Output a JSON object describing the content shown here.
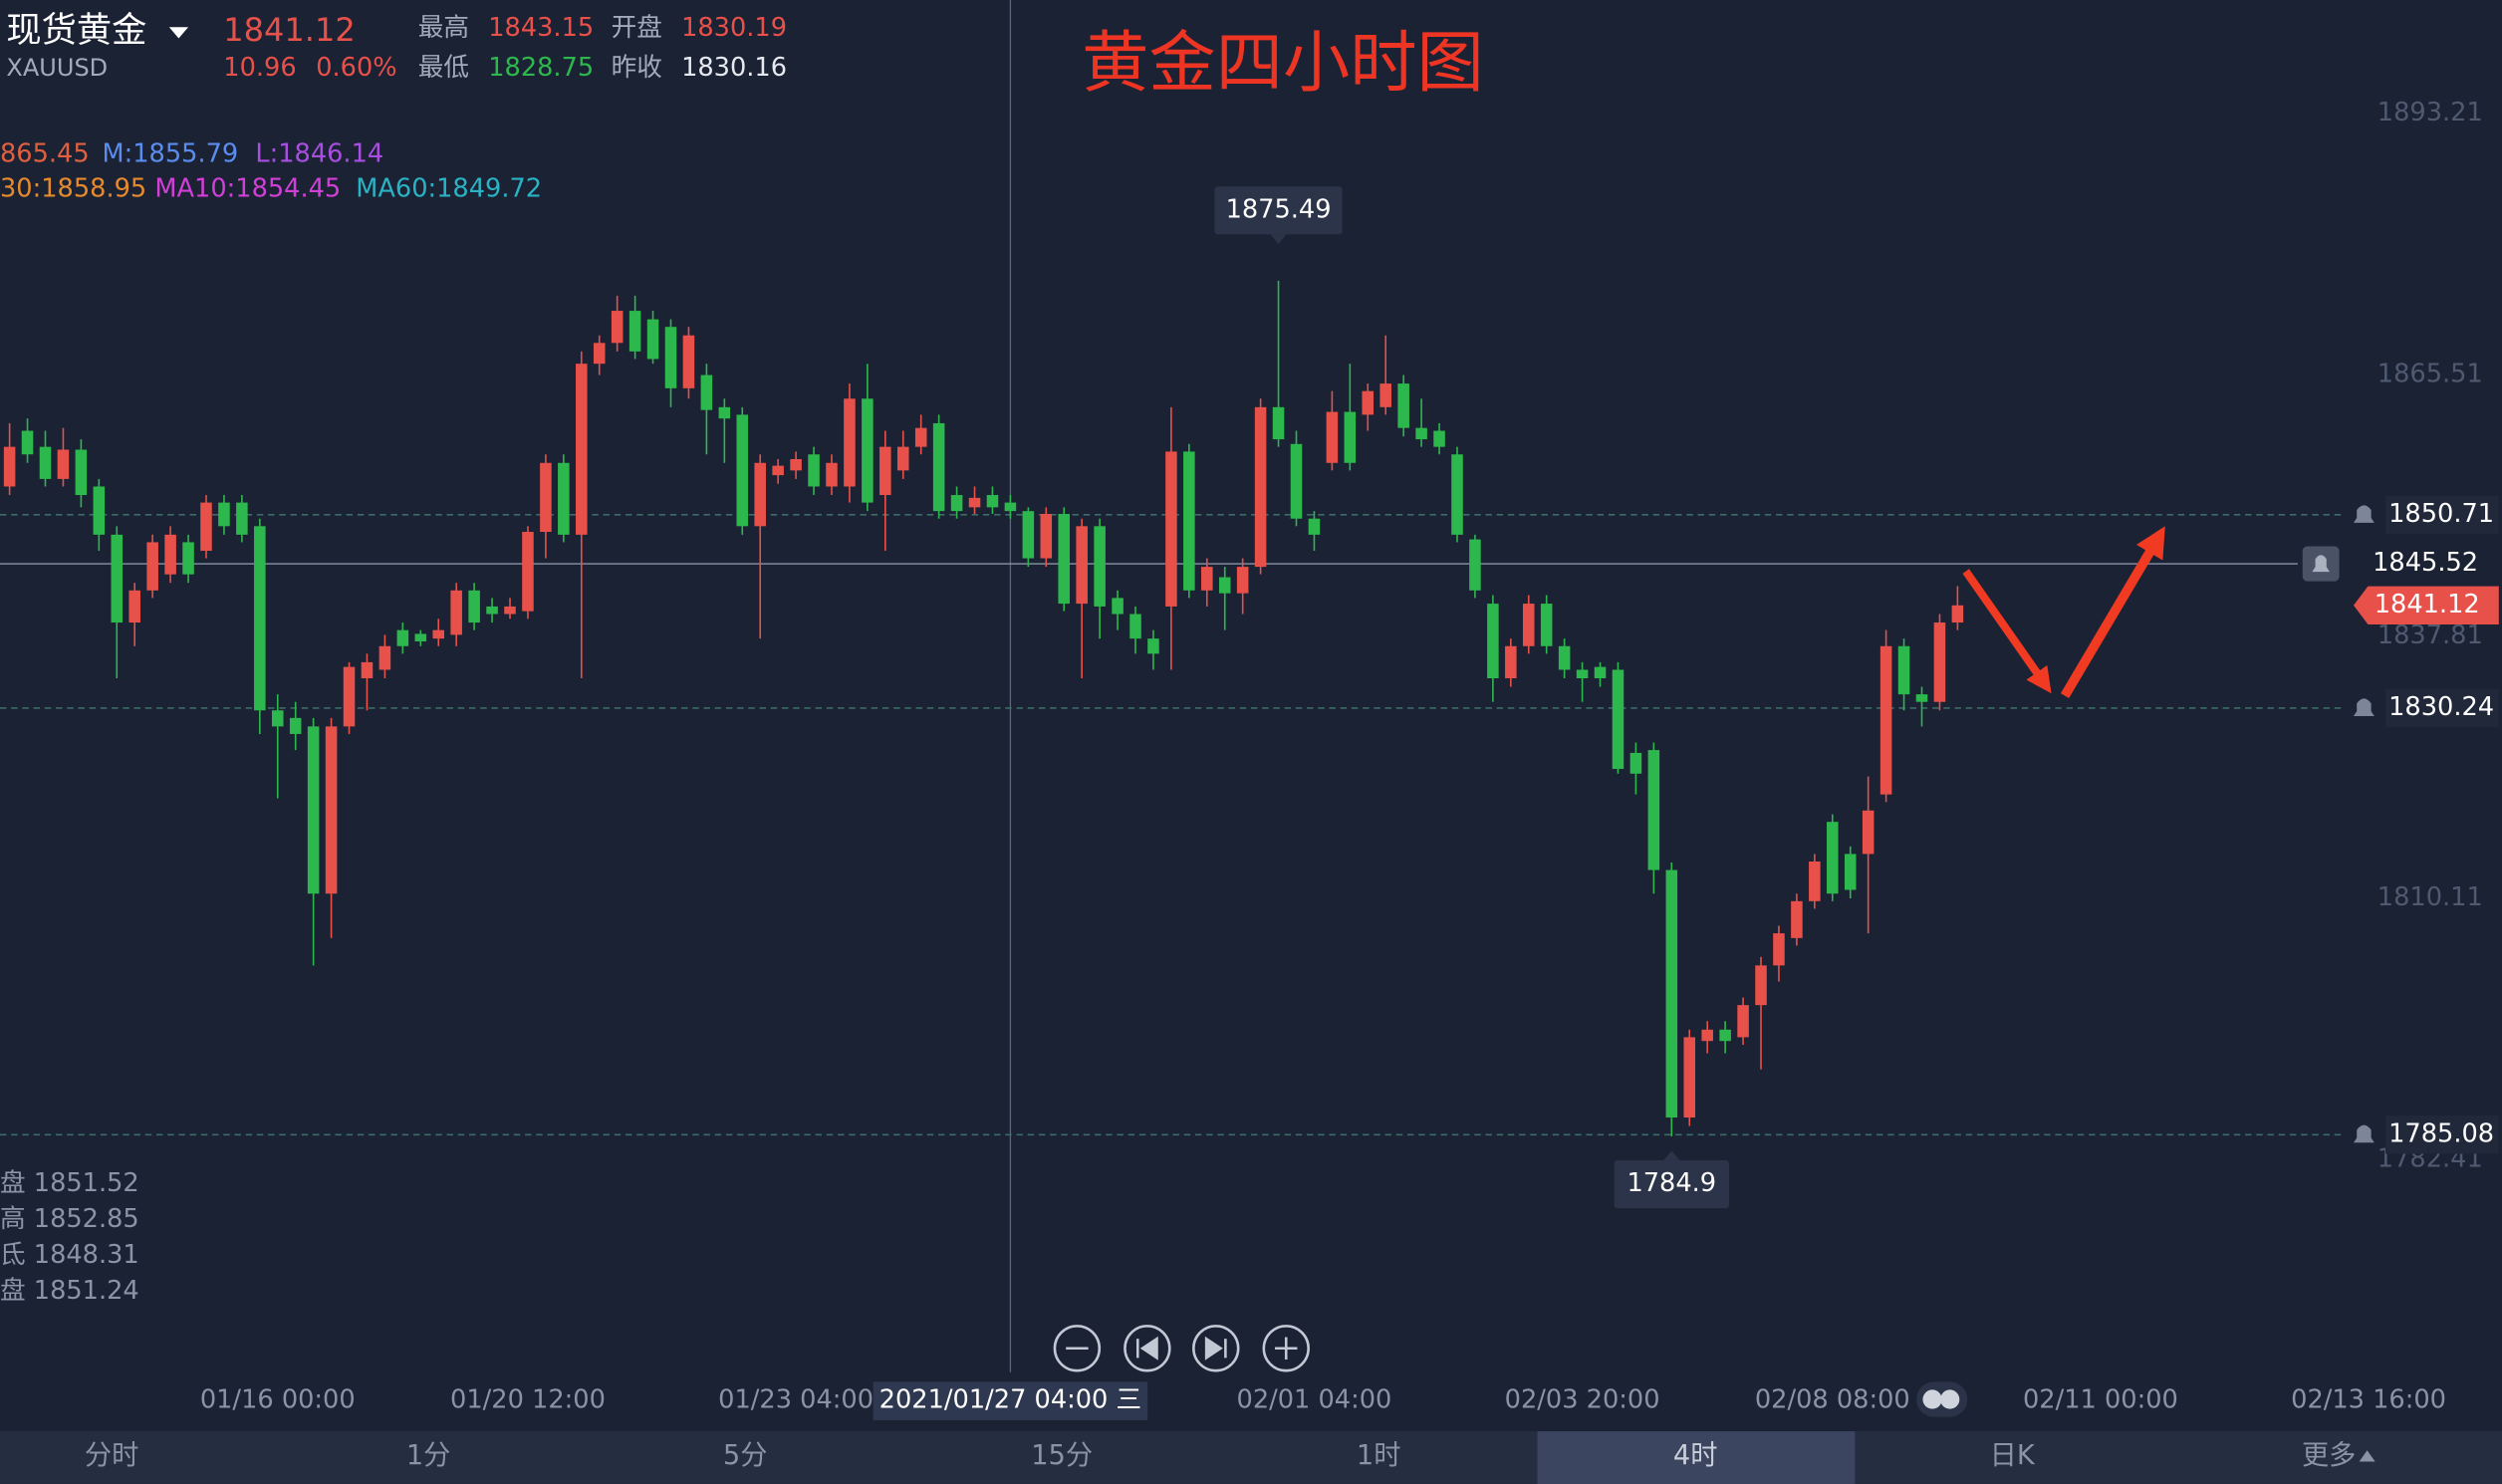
{
  "header": {
    "name": "现货黄金",
    "symbol": "XAUUSD",
    "price": 1841.12,
    "change": 10.96,
    "change_pct": "0.60%",
    "stats": [
      {
        "label": "最高",
        "value": 1843.15,
        "color": "#e8514a"
      },
      {
        "label": "开盘",
        "value": 1830.19,
        "color": "#e8514a"
      },
      {
        "label": "最低",
        "value": 1828.75,
        "color": "#2db84d"
      },
      {
        "label": "昨收",
        "value": 1830.16,
        "color": "#e6e9ef"
      }
    ]
  },
  "chart_data": {
    "type": "candlestick",
    "title": "黄金四小时图",
    "up_color": "#e8514a",
    "down_color": "#2db84d",
    "ylim": [
      1759.93,
      1905.2
    ],
    "yticks": [
      1893.21,
      1865.51,
      1837.81,
      1810.11,
      1782.41
    ],
    "categories": [
      null,
      null,
      null,
      null,
      null,
      null,
      null,
      null,
      null,
      null,
      null,
      null,
      null,
      null,
      null,
      "01/16 00:00",
      null,
      null,
      null,
      null,
      null,
      null,
      null,
      null,
      null,
      null,
      null,
      null,
      null,
      "01/20 12:00",
      null,
      null,
      null,
      null,
      null,
      null,
      null,
      null,
      null,
      null,
      null,
      null,
      null,
      null,
      "01/23 04:00",
      null,
      null,
      null,
      null,
      null,
      null,
      null,
      null,
      null,
      null,
      null,
      "2021/01/27 04:00 三",
      null,
      null,
      null,
      null,
      null,
      null,
      null,
      null,
      null,
      null,
      null,
      null,
      null,
      null,
      null,
      null,
      "02/01 04:00",
      null,
      null,
      null,
      null,
      null,
      null,
      null,
      null,
      null,
      null,
      null,
      null,
      null,
      null,
      "02/03 20:00",
      null,
      null,
      null,
      null,
      null,
      null,
      null,
      null,
      null,
      null,
      null,
      null,
      null,
      "02/08 08:00",
      null,
      null,
      null,
      null,
      null,
      null,
      null,
      null,
      null,
      null,
      null,
      null,
      null,
      null,
      "02/11 00:00",
      null,
      null,
      null,
      null,
      null,
      null,
      null,
      null,
      null,
      null,
      null,
      null,
      null,
      null,
      "02/13 16:00",
      null,
      null,
      null,
      null,
      null,
      null,
      null
    ],
    "open": [
      1853.7,
      1859.6,
      1857.9,
      1854.5,
      1857.6,
      1853.7,
      1848.6,
      1839.3,
      1842.7,
      1844.4,
      1847.8,
      1846.9,
      1852.0,
      1852.0,
      1849.5,
      1830.0,
      1829.2,
      1828.3,
      1810.6,
      1828.3,
      1833.4,
      1834.3,
      1838.5,
      1838.1,
      1837.6,
      1838.0,
      1842.7,
      1841.0,
      1840.2,
      1840.5,
      1848.9,
      1856.2,
      1848.6,
      1866.7,
      1868.9,
      1872.3,
      1871.4,
      1870.6,
      1864.1,
      1865.5,
      1862.1,
      1861.3,
      1849.5,
      1854.9,
      1855.4,
      1857.1,
      1853.7,
      1853.7,
      1863.0,
      1852.8,
      1855.4,
      1857.9,
      1860.4,
      1852.8,
      1851.5,
      1852.8,
      1852.0,
      1851.1,
      1846.1,
      1850.8,
      1841.3,
      1849.5,
      1841.9,
      1840.2,
      1837.6,
      1841.0,
      1857.4,
      1842.7,
      1844.1,
      1842.4,
      1845.2,
      1862.1,
      1858.2,
      1850.3,
      1856.2,
      1861.6,
      1861.3,
      1862.1,
      1864.6,
      1859.9,
      1859.6,
      1857.1,
      1848.1,
      1841.3,
      1833.4,
      1836.8,
      1841.3,
      1836.8,
      1834.3,
      1834.6,
      1834.3,
      1825.5,
      1825.8,
      1813.1,
      1786.9,
      1795.0,
      1796.2,
      1795.4,
      1798.8,
      1803.0,
      1805.9,
      1809.8,
      1818.2,
      1814.8,
      1814.8,
      1821.1,
      1836.8,
      1831.7,
      1830.9,
      1839.3,
      null,
      null,
      null,
      null,
      null,
      null,
      null,
      null,
      null,
      null,
      null,
      null,
      null,
      null,
      null,
      null,
      null,
      null,
      null,
      null,
      null,
      null,
      null,
      null,
      null,
      null,
      null,
      null,
      null,
      null
    ],
    "high": [
      1860.4,
      1860.9,
      1859.6,
      1859.9,
      1858.7,
      1854.5,
      1849.5,
      1843.5,
      1848.6,
      1849.5,
      1848.6,
      1852.8,
      1852.8,
      1852.8,
      1850.3,
      1831.7,
      1830.9,
      1829.2,
      1829.2,
      1835.1,
      1836.0,
      1838.0,
      1839.3,
      1838.5,
      1839.7,
      1843.5,
      1843.5,
      1841.9,
      1841.9,
      1849.5,
      1857.1,
      1857.1,
      1868.0,
      1869.7,
      1873.9,
      1873.9,
      1872.3,
      1871.4,
      1870.6,
      1866.7,
      1863.0,
      1862.1,
      1857.1,
      1856.6,
      1857.4,
      1857.9,
      1857.1,
      1864.6,
      1866.7,
      1859.6,
      1859.6,
      1861.3,
      1861.3,
      1853.7,
      1853.7,
      1853.7,
      1852.8,
      1851.5,
      1851.5,
      1851.5,
      1850.3,
      1850.3,
      1842.7,
      1841.0,
      1838.5,
      1862.1,
      1858.2,
      1846.1,
      1845.2,
      1846.1,
      1863.0,
      1875.49,
      1859.6,
      1851.1,
      1863.8,
      1866.7,
      1864.6,
      1869.7,
      1865.5,
      1863.0,
      1860.4,
      1857.9,
      1848.6,
      1842.2,
      1837.6,
      1842.2,
      1842.2,
      1837.6,
      1835.1,
      1835.1,
      1835.1,
      1826.6,
      1826.6,
      1813.9,
      1796.2,
      1797.1,
      1797.1,
      1799.6,
      1803.9,
      1807.2,
      1810.6,
      1814.8,
      1819.0,
      1815.6,
      1823.0,
      1838.5,
      1837.6,
      1832.5,
      1840.2,
      1843.15,
      null,
      null,
      null,
      null,
      null,
      null,
      null,
      null,
      null,
      null,
      null,
      null,
      null,
      null,
      null,
      null,
      null,
      null,
      null,
      null,
      null,
      null,
      null,
      null,
      null,
      null,
      null,
      null,
      null,
      null
    ],
    "low": [
      1852.8,
      1856.2,
      1853.7,
      1853.7,
      1851.5,
      1846.9,
      1833.4,
      1836.8,
      1841.9,
      1843.5,
      1843.5,
      1846.1,
      1848.6,
      1847.8,
      1827.5,
      1820.7,
      1825.8,
      1803.0,
      1805.9,
      1827.5,
      1830.0,
      1833.4,
      1836.0,
      1836.8,
      1836.8,
      1836.8,
      1838.5,
      1839.3,
      1839.7,
      1839.7,
      1846.1,
      1847.8,
      1833.4,
      1865.5,
      1868.0,
      1867.2,
      1866.7,
      1862.1,
      1863.0,
      1857.1,
      1856.2,
      1848.6,
      1837.6,
      1854.0,
      1854.5,
      1852.8,
      1852.8,
      1852.0,
      1851.1,
      1846.9,
      1854.5,
      1857.1,
      1850.3,
      1850.3,
      1850.8,
      1850.8,
      1850.3,
      1845.2,
      1845.2,
      1840.5,
      1833.4,
      1837.6,
      1838.5,
      1836.0,
      1834.3,
      1834.3,
      1841.9,
      1841.0,
      1838.5,
      1840.2,
      1844.4,
      1857.9,
      1849.5,
      1846.9,
      1855.4,
      1855.4,
      1859.6,
      1861.3,
      1859.0,
      1857.9,
      1857.1,
      1847.8,
      1841.9,
      1830.9,
      1832.5,
      1836.0,
      1836.0,
      1833.4,
      1830.9,
      1832.5,
      1823.3,
      1821.1,
      1810.6,
      1784.9,
      1786.0,
      1793.7,
      1793.7,
      1794.6,
      1792.0,
      1801.3,
      1805.1,
      1809.0,
      1809.8,
      1810.1,
      1806.4,
      1820.3,
      1830.0,
      1828.3,
      1830.0,
      1838.5,
      null,
      null,
      null,
      null,
      null,
      null,
      null,
      null,
      null,
      null,
      null,
      null,
      null,
      null,
      null,
      null,
      null,
      null,
      null,
      null,
      null,
      null,
      null,
      null,
      null,
      null,
      null,
      null,
      null,
      null
    ],
    "close": [
      1857.9,
      1857.1,
      1854.5,
      1857.6,
      1852.8,
      1848.6,
      1839.3,
      1842.7,
      1847.8,
      1848.6,
      1844.4,
      1852.0,
      1849.5,
      1848.6,
      1830.0,
      1828.3,
      1827.5,
      1810.6,
      1828.3,
      1834.6,
      1835.1,
      1836.8,
      1836.8,
      1837.3,
      1838.5,
      1842.7,
      1839.3,
      1840.2,
      1841.0,
      1848.9,
      1856.2,
      1848.6,
      1866.7,
      1868.9,
      1872.3,
      1868.0,
      1867.2,
      1864.1,
      1869.7,
      1861.8,
      1860.9,
      1849.5,
      1856.2,
      1855.9,
      1856.6,
      1853.7,
      1856.2,
      1863.0,
      1852.0,
      1857.9,
      1857.9,
      1859.9,
      1851.1,
      1851.1,
      1852.5,
      1851.5,
      1851.1,
      1846.1,
      1850.8,
      1841.3,
      1849.5,
      1841.0,
      1840.2,
      1837.6,
      1836.0,
      1857.4,
      1842.7,
      1845.2,
      1842.4,
      1845.2,
      1862.1,
      1858.7,
      1850.3,
      1848.6,
      1861.6,
      1856.2,
      1863.8,
      1864.6,
      1859.9,
      1858.7,
      1857.9,
      1848.6,
      1842.7,
      1833.4,
      1836.8,
      1841.3,
      1836.8,
      1834.3,
      1833.4,
      1833.4,
      1823.8,
      1823.3,
      1813.1,
      1786.9,
      1795.4,
      1796.2,
      1795.0,
      1798.8,
      1803.0,
      1806.4,
      1809.8,
      1814.0,
      1810.6,
      1811.0,
      1819.4,
      1836.8,
      1831.7,
      1830.9,
      1839.3,
      1841.12,
      null,
      null,
      null,
      null,
      null,
      null,
      null,
      null,
      null,
      null,
      null,
      null,
      null,
      null,
      null,
      null,
      null,
      null,
      null,
      null,
      null,
      null,
      null,
      null,
      null,
      null,
      null,
      null,
      null,
      null
    ],
    "high_label": 1875.49,
    "low_label": 1784.9,
    "alert_lines": [
      1850.71,
      1830.24,
      1785.08
    ],
    "crosshair": {
      "category": 56,
      "value": 1845.52
    },
    "last_price": 1841.12,
    "indicator_legend": [
      {
        "text": "865.45",
        "color": "#e0603f"
      },
      {
        "text": "M:1855.79",
        "color": "#5b8def"
      },
      {
        "text": "L:1846.14",
        "color": "#a84ee0"
      },
      {
        "text": "30:1858.95",
        "color": "#e68a2e"
      },
      {
        "text": "MA10:1854.45",
        "color": "#d23fd6"
      },
      {
        "text": "MA60:1849.72",
        "color": "#2ab3c4"
      }
    ],
    "info_lines": [
      "盘 1851.52",
      "高 1852.85",
      "氐 1848.31",
      "盘 1851.24"
    ]
  },
  "tabs": [
    {
      "label": "分时",
      "active": false
    },
    {
      "label": "1分",
      "active": false
    },
    {
      "label": "5分",
      "active": false
    },
    {
      "label": "15分",
      "active": false
    },
    {
      "label": "1时",
      "active": false
    },
    {
      "label": "4时",
      "active": true
    },
    {
      "label": "日K",
      "active": false
    },
    {
      "label": "更多",
      "active": false
    }
  ]
}
